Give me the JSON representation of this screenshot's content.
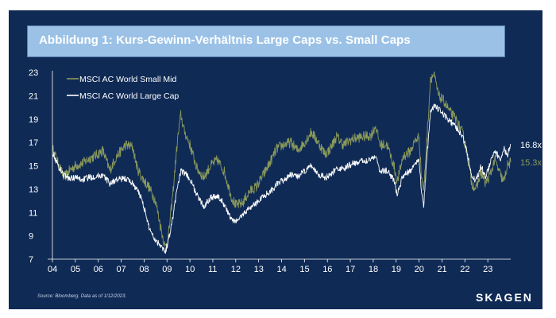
{
  "title": "Abbildung 1: Kurs-Gewinn-Verhältnis Large Caps vs. Small Caps",
  "source": "Source: Bloomberg. Data as of 1/12/2023.",
  "logo": "SKAGEN",
  "colors": {
    "background": "#0f2a55",
    "titlebar": "#9bc2e6",
    "small_mid": "#8a9a5b",
    "large_cap": "#ffffff"
  },
  "chart_data": {
    "type": "line",
    "title": "Abbildung 1: Kurs-Gewinn-Verhältnis Large Caps vs. Small Caps",
    "xlabel": "",
    "ylabel": "",
    "ylim": [
      7,
      23
    ],
    "xlim": [
      2004.0,
      2024.0
    ],
    "y_ticks": [
      "7",
      "9",
      "11",
      "13",
      "15",
      "17",
      "19",
      "21",
      "23"
    ],
    "x_ticks": [
      {
        "year": 2004,
        "label": "04"
      },
      {
        "year": 2005,
        "label": "05"
      },
      {
        "year": 2006,
        "label": "06"
      },
      {
        "year": 2007,
        "label": "07"
      },
      {
        "year": 2008,
        "label": "08"
      },
      {
        "year": 2009,
        "label": "09"
      },
      {
        "year": 2010,
        "label": "10"
      },
      {
        "year": 2011,
        "label": "11"
      },
      {
        "year": 2012,
        "label": "12"
      },
      {
        "year": 2013,
        "label": "13"
      },
      {
        "year": 2014,
        "label": "14"
      },
      {
        "year": 2015,
        "label": "15"
      },
      {
        "year": 2016,
        "label": "16"
      },
      {
        "year": 2017,
        "label": "17"
      },
      {
        "year": 2018,
        "label": "18"
      },
      {
        "year": 2019,
        "label": "19"
      },
      {
        "year": 2020,
        "label": "20"
      },
      {
        "year": 2021,
        "label": "21"
      },
      {
        "year": 2022,
        "label": "22"
      },
      {
        "year": 2023,
        "label": "23"
      }
    ],
    "grid": false,
    "legend_position": "top-left",
    "series": [
      {
        "name": "MSCI AC World Small Mid",
        "color": "#8a9a5b",
        "end_label": "15.3x",
        "points": [
          [
            2004.0,
            16.5
          ],
          [
            2004.25,
            15.2
          ],
          [
            2004.5,
            14.0
          ],
          [
            2004.75,
            14.6
          ],
          [
            2005.0,
            15.0
          ],
          [
            2005.3,
            15.2
          ],
          [
            2005.6,
            15.6
          ],
          [
            2005.9,
            15.9
          ],
          [
            2006.2,
            16.3
          ],
          [
            2006.5,
            14.6
          ],
          [
            2006.8,
            15.8
          ],
          [
            2007.2,
            16.8
          ],
          [
            2007.5,
            16.6
          ],
          [
            2007.7,
            14.8
          ],
          [
            2007.9,
            14.0
          ],
          [
            2008.2,
            13.2
          ],
          [
            2008.5,
            12.0
          ],
          [
            2008.75,
            9.5
          ],
          [
            2008.92,
            8.0
          ],
          [
            2009.05,
            8.8
          ],
          [
            2009.25,
            12.5
          ],
          [
            2009.45,
            17.0
          ],
          [
            2009.6,
            19.4
          ],
          [
            2009.75,
            18.0
          ],
          [
            2010.0,
            16.8
          ],
          [
            2010.3,
            14.8
          ],
          [
            2010.6,
            14.0
          ],
          [
            2010.9,
            15.0
          ],
          [
            2011.2,
            15.5
          ],
          [
            2011.5,
            14.5
          ],
          [
            2011.8,
            12.4
          ],
          [
            2012.0,
            11.6
          ],
          [
            2012.3,
            11.8
          ],
          [
            2012.6,
            12.8
          ],
          [
            2012.9,
            13.2
          ],
          [
            2013.2,
            14.2
          ],
          [
            2013.5,
            15.3
          ],
          [
            2013.8,
            16.5
          ],
          [
            2014.1,
            16.8
          ],
          [
            2014.4,
            17.0
          ],
          [
            2014.7,
            16.3
          ],
          [
            2015.0,
            17.0
          ],
          [
            2015.3,
            17.9
          ],
          [
            2015.6,
            17.0
          ],
          [
            2015.9,
            16.0
          ],
          [
            2016.1,
            16.4
          ],
          [
            2016.4,
            17.5
          ],
          [
            2016.7,
            16.8
          ],
          [
            2017.0,
            17.2
          ],
          [
            2017.3,
            17.4
          ],
          [
            2017.6,
            17.5
          ],
          [
            2017.9,
            17.6
          ],
          [
            2018.1,
            18.4
          ],
          [
            2018.3,
            16.8
          ],
          [
            2018.6,
            16.8
          ],
          [
            2018.9,
            15.0
          ],
          [
            2019.05,
            13.6
          ],
          [
            2019.3,
            15.8
          ],
          [
            2019.6,
            16.2
          ],
          [
            2019.85,
            17.2
          ],
          [
            2020.0,
            17.5
          ],
          [
            2020.1,
            14.2
          ],
          [
            2020.2,
            12.8
          ],
          [
            2020.35,
            17.5
          ],
          [
            2020.5,
            22.5
          ],
          [
            2020.65,
            22.8
          ],
          [
            2020.85,
            21.0
          ],
          [
            2021.1,
            20.5
          ],
          [
            2021.35,
            19.6
          ],
          [
            2021.6,
            19.0
          ],
          [
            2021.9,
            17.8
          ],
          [
            2022.1,
            16.0
          ],
          [
            2022.3,
            13.5
          ],
          [
            2022.5,
            13.0
          ],
          [
            2022.7,
            14.5
          ],
          [
            2022.9,
            13.5
          ],
          [
            2023.1,
            14.2
          ],
          [
            2023.3,
            15.5
          ],
          [
            2023.55,
            14.2
          ],
          [
            2023.7,
            13.6
          ],
          [
            2023.85,
            15.0
          ],
          [
            2024.0,
            15.3
          ]
        ]
      },
      {
        "name": "MSCI AC World Large Cap",
        "color": "#ffffff",
        "end_label": "16.8x",
        "points": [
          [
            2004.0,
            16.2
          ],
          [
            2004.25,
            15.0
          ],
          [
            2004.5,
            14.2
          ],
          [
            2004.75,
            13.9
          ],
          [
            2005.0,
            14.0
          ],
          [
            2005.3,
            13.8
          ],
          [
            2005.6,
            14.0
          ],
          [
            2005.9,
            14.1
          ],
          [
            2006.2,
            14.2
          ],
          [
            2006.5,
            13.5
          ],
          [
            2006.8,
            13.8
          ],
          [
            2007.2,
            13.9
          ],
          [
            2007.5,
            13.5
          ],
          [
            2007.7,
            12.9
          ],
          [
            2007.9,
            12.2
          ],
          [
            2008.2,
            9.8
          ],
          [
            2008.5,
            8.6
          ],
          [
            2008.75,
            8.2
          ],
          [
            2008.92,
            7.6
          ],
          [
            2009.05,
            8.5
          ],
          [
            2009.25,
            10.5
          ],
          [
            2009.45,
            13.2
          ],
          [
            2009.6,
            14.5
          ],
          [
            2009.75,
            14.4
          ],
          [
            2010.0,
            13.9
          ],
          [
            2010.3,
            12.5
          ],
          [
            2010.6,
            11.5
          ],
          [
            2010.9,
            12.3
          ],
          [
            2011.2,
            12.4
          ],
          [
            2011.5,
            11.7
          ],
          [
            2011.8,
            10.4
          ],
          [
            2012.0,
            10.2
          ],
          [
            2012.3,
            10.8
          ],
          [
            2012.6,
            11.4
          ],
          [
            2012.9,
            11.8
          ],
          [
            2013.2,
            12.4
          ],
          [
            2013.5,
            12.8
          ],
          [
            2013.8,
            13.4
          ],
          [
            2014.1,
            13.8
          ],
          [
            2014.4,
            14.2
          ],
          [
            2014.7,
            14.1
          ],
          [
            2015.0,
            14.5
          ],
          [
            2015.3,
            15.0
          ],
          [
            2015.6,
            14.3
          ],
          [
            2015.9,
            14.0
          ],
          [
            2016.1,
            14.1
          ],
          [
            2016.4,
            14.8
          ],
          [
            2016.7,
            14.7
          ],
          [
            2017.0,
            15.1
          ],
          [
            2017.3,
            15.3
          ],
          [
            2017.6,
            15.4
          ],
          [
            2017.9,
            15.6
          ],
          [
            2018.1,
            15.9
          ],
          [
            2018.3,
            14.5
          ],
          [
            2018.6,
            14.6
          ],
          [
            2018.9,
            13.8
          ],
          [
            2019.05,
            12.5
          ],
          [
            2019.3,
            14.2
          ],
          [
            2019.6,
            14.5
          ],
          [
            2019.85,
            15.3
          ],
          [
            2020.0,
            15.5
          ],
          [
            2020.1,
            13.0
          ],
          [
            2020.2,
            11.5
          ],
          [
            2020.35,
            16.0
          ],
          [
            2020.5,
            19.5
          ],
          [
            2020.65,
            20.2
          ],
          [
            2020.85,
            19.8
          ],
          [
            2021.1,
            19.3
          ],
          [
            2021.35,
            18.8
          ],
          [
            2021.6,
            18.3
          ],
          [
            2021.9,
            17.5
          ],
          [
            2022.1,
            16.2
          ],
          [
            2022.3,
            14.0
          ],
          [
            2022.5,
            13.8
          ],
          [
            2022.7,
            15.0
          ],
          [
            2022.9,
            14.0
          ],
          [
            2023.1,
            15.2
          ],
          [
            2023.3,
            16.2
          ],
          [
            2023.55,
            15.6
          ],
          [
            2023.7,
            16.6
          ],
          [
            2023.85,
            15.8
          ],
          [
            2024.0,
            16.8
          ]
        ]
      }
    ]
  }
}
